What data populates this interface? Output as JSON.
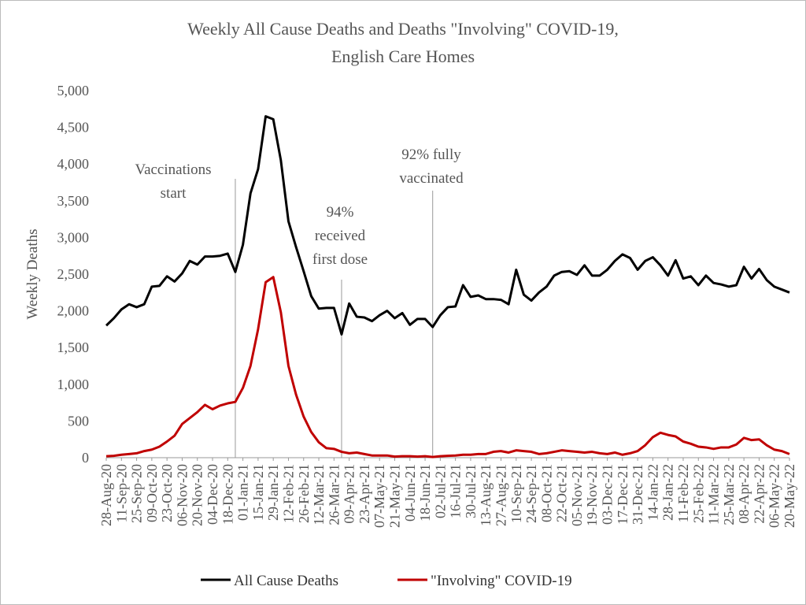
{
  "chart_data": {
    "type": "line",
    "title": [
      "Weekly All Cause Deaths and Deaths \"Involving\" COVID-19,",
      "English Care Homes"
    ],
    "ylabel": "Weekly Deaths",
    "categories": [
      "28-Aug-20",
      null,
      "11-Sep-20",
      null,
      "25-Sep-20",
      null,
      "09-Oct-20",
      null,
      "23-Oct-20",
      null,
      "06-Nov-20",
      null,
      "20-Nov-20",
      null,
      "04-Dec-20",
      null,
      "18-Dec-20",
      null,
      "01-Jan-21",
      null,
      "15-Jan-21",
      null,
      "29-Jan-21",
      null,
      "12-Feb-21",
      null,
      "26-Feb-21",
      null,
      "12-Mar-21",
      null,
      "26-Mar-21",
      null,
      "09-Apr-21",
      null,
      "23-Apr-21",
      null,
      "07-May-21",
      null,
      "21-May-21",
      null,
      "04-Jun-21",
      null,
      "18-Jun-21",
      null,
      "02-Jul-21",
      null,
      "16-Jul-21",
      null,
      "30-Jul-21",
      null,
      "13-Aug-21",
      null,
      "27-Aug-21",
      null,
      "10-Sep-21",
      null,
      "24-Sep-21",
      null,
      "08-Oct-21",
      null,
      "22-Oct-21",
      null,
      "05-Nov-21",
      null,
      "19-Nov-21",
      null,
      "03-Dec-21",
      null,
      "17-Dec-21",
      null,
      "31-Dec-21",
      null,
      "14-Jan-22",
      null,
      "28-Jan-22",
      null,
      "11-Feb-22",
      null,
      "25-Feb-22",
      null,
      "11-Mar-22",
      null,
      "25-Mar-22",
      null,
      "08-Apr-22",
      null,
      "22-Apr-22",
      null,
      "06-May-22",
      null,
      "20-May-22"
    ],
    "series": [
      {
        "name": "All Cause Deaths",
        "color": "#000000",
        "values": [
          1800,
          1900,
          2020,
          2090,
          2050,
          2090,
          2330,
          2340,
          2470,
          2400,
          2510,
          2680,
          2630,
          2740,
          2740,
          2750,
          2780,
          2530,
          2900,
          3600,
          3930,
          4650,
          4610,
          4050,
          3220,
          2870,
          2540,
          2200,
          2030,
          2040,
          2040,
          1680,
          2100,
          1920,
          1910,
          1860,
          1940,
          2000,
          1900,
          1970,
          1810,
          1890,
          1890,
          1780,
          1940,
          2050,
          2060,
          2350,
          2190,
          2210,
          2160,
          2160,
          2150,
          2090,
          2560,
          2220,
          2140,
          2250,
          2330,
          2480,
          2530,
          2540,
          2490,
          2620,
          2480,
          2480,
          2560,
          2680,
          2770,
          2720,
          2560,
          2680,
          2730,
          2620,
          2480,
          2690,
          2440,
          2470,
          2350,
          2480,
          2380,
          2360,
          2330,
          2350,
          2600,
          2440,
          2570,
          2420,
          2330,
          2290,
          2250
        ]
      },
      {
        "name": "\"Involving\" COVID-19",
        "color": "#c00000",
        "values": [
          20,
          25,
          40,
          50,
          60,
          90,
          110,
          150,
          220,
          300,
          460,
          540,
          620,
          720,
          660,
          710,
          740,
          760,
          950,
          1250,
          1750,
          2390,
          2460,
          1980,
          1250,
          860,
          560,
          350,
          210,
          130,
          120,
          80,
          60,
          70,
          50,
          30,
          30,
          30,
          15,
          20,
          20,
          15,
          20,
          10,
          20,
          25,
          30,
          40,
          40,
          50,
          50,
          80,
          90,
          70,
          100,
          90,
          80,
          50,
          60,
          80,
          100,
          90,
          80,
          70,
          80,
          60,
          50,
          70,
          40,
          60,
          90,
          170,
          280,
          340,
          310,
          290,
          220,
          190,
          150,
          140,
          120,
          140,
          140,
          180,
          270,
          240,
          250,
          170,
          110,
          90,
          50
        ]
      }
    ],
    "ylim": [
      0,
      5000
    ],
    "yticks": [
      0,
      500,
      {
        "value": 1000,
        "label": "1,000"
      },
      {
        "value": 1500,
        "label": "1,500"
      },
      {
        "value": 2000,
        "label": "2,000"
      },
      {
        "value": 2500,
        "label": "2,500"
      },
      {
        "value": 3000,
        "label": "3,000"
      },
      {
        "value": 3500,
        "label": "3,500"
      },
      {
        "value": 4000,
        "label": "4,000"
      },
      {
        "value": 4500,
        "label": "4,500"
      },
      {
        "value": 5000,
        "label": "5,000"
      }
    ],
    "annotations": [
      [
        "Vaccinations",
        "start"
      ],
      [
        "94%",
        "received",
        "first dose"
      ],
      [
        "92% fully",
        "vaccinated"
      ]
    ],
    "legend": "bottom"
  }
}
